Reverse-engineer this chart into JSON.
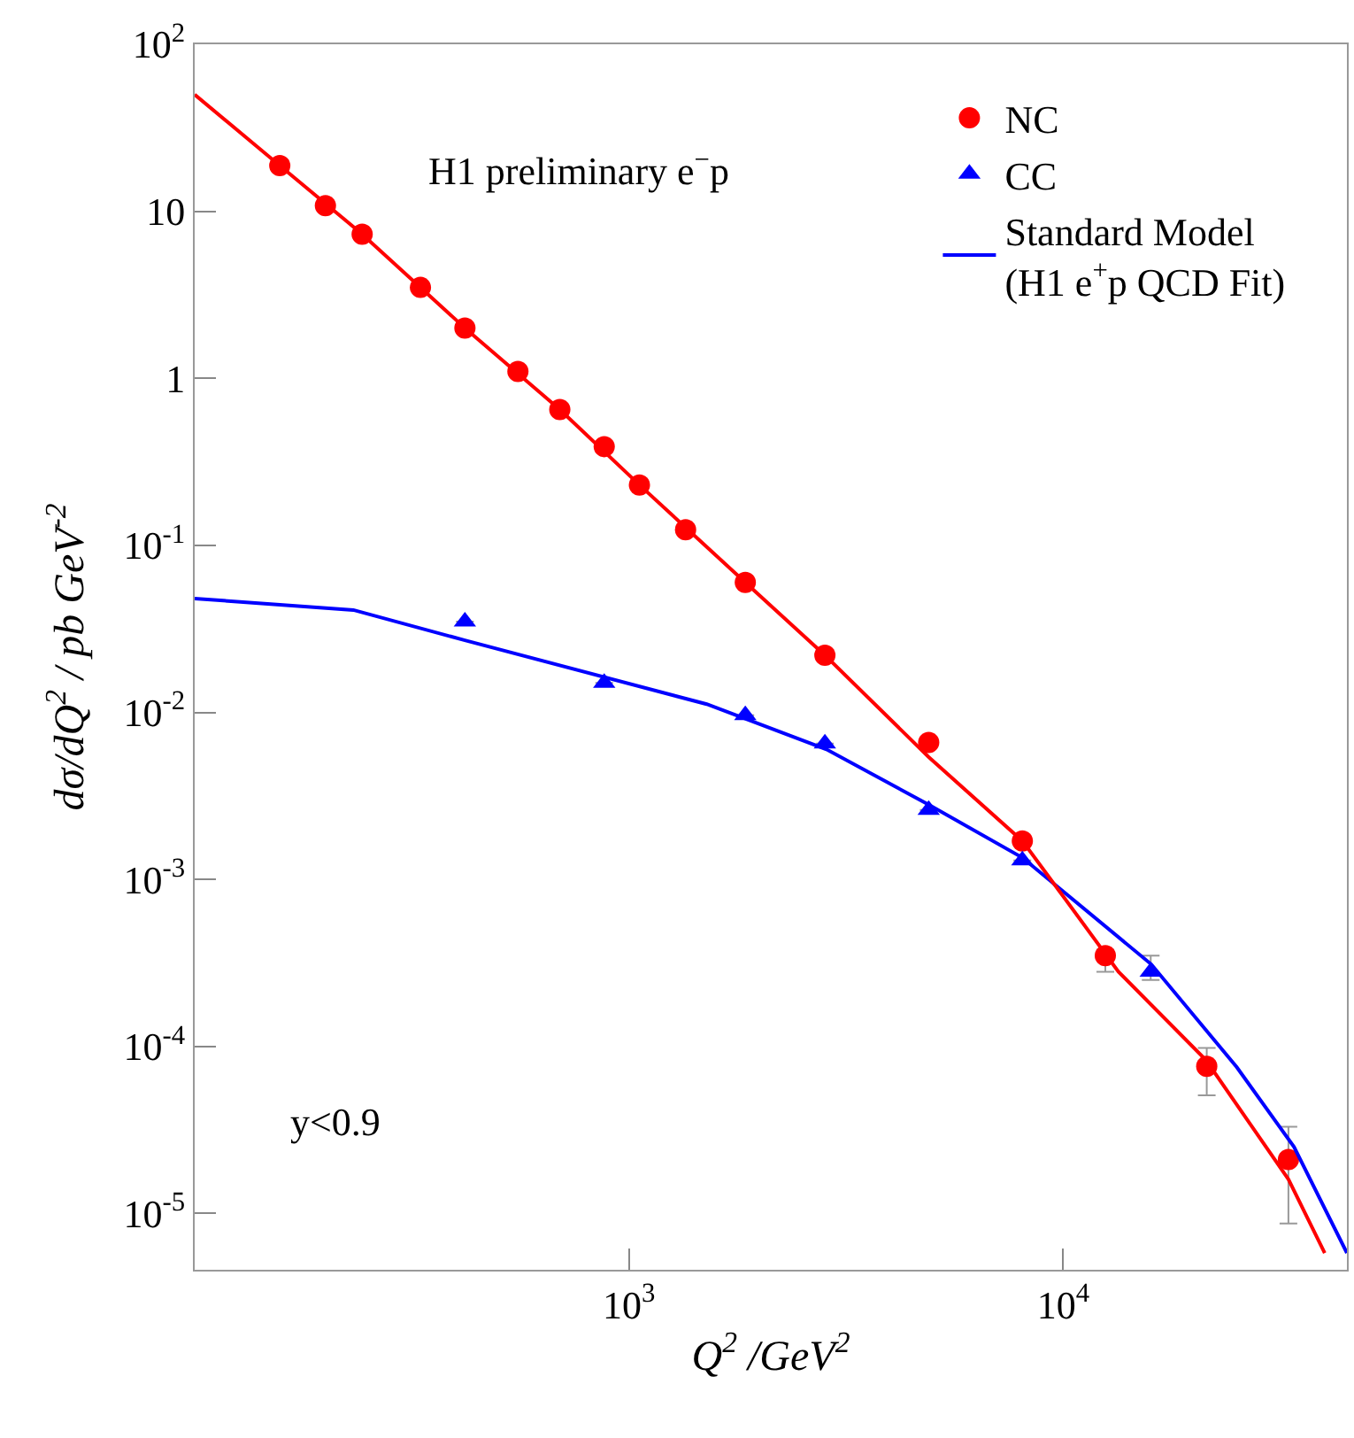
{
  "chart_data": {
    "type": "scatter",
    "xlabel": "Q$^{2}$ /GeV$^{2}$",
    "ylabel": "dσ/dQ$^{2}$ / pb GeV$^{-2}$",
    "annotations": [
      "H1 preliminary e$^{−}$p",
      "y<0.9"
    ],
    "log": "xy",
    "legend": "top right",
    "xlim": [
      100,
      45000
    ],
    "ylim": [
      4.6e-06,
      100
    ],
    "xticks": [
      {
        "value": 1000,
        "label": "10$^{3}$"
      },
      {
        "value": 10000,
        "label": "10$^{4}$"
      }
    ],
    "yticks": [
      {
        "value": 1e-05,
        "label": "10$^{-5}$"
      },
      {
        "value": 0.0001,
        "label": "10$^{-4}$"
      },
      {
        "value": 0.001,
        "label": "10$^{-3}$"
      },
      {
        "value": 0.01,
        "label": "10$^{-2}$"
      },
      {
        "value": 0.1,
        "label": "10$^{-1}$"
      },
      1,
      10,
      {
        "value": 100,
        "label": "10$^{2}$"
      }
    ],
    "series": [
      {
        "name": "NC",
        "marker": "circle",
        "color": "#ff0000",
        "x": [
          157,
          200,
          243,
          331,
          419,
          555,
          693,
          877,
          1057,
          1350,
          1853,
          2826,
          4900,
          8050,
          12500,
          21400,
          33000
        ],
        "values": [
          18.8,
          10.8,
          7.3,
          3.5,
          2.0,
          1.1,
          0.65,
          0.39,
          0.23,
          0.124,
          0.06,
          0.022,
          0.0066,
          0.0017,
          0.00035,
          7.6e-05,
          2.1e-05
        ],
        "errors": [
          null,
          null,
          null,
          null,
          null,
          null,
          null,
          null,
          null,
          null,
          null,
          null,
          null,
          null,
          [
            0.00028,
            0.00038
          ],
          [
            5.1e-05,
            9.8e-05
          ],
          [
            8.7e-06,
            3.3e-05
          ]
        ]
      },
      {
        "name": "CC",
        "marker": "triangle",
        "color": "#0000ff",
        "x": [
          419,
          877,
          1853,
          2826,
          4900,
          8050,
          15900
        ],
        "values": [
          0.035,
          0.015,
          0.0096,
          0.0065,
          0.0026,
          0.0013,
          0.00028
        ],
        "errors": [
          null,
          null,
          null,
          null,
          null,
          null,
          [
            0.00025,
            0.00035
          ]
        ]
      },
      {
        "name": "Standard Model\n(H1 e$^{+}$p QCD Fit)",
        "type": "line",
        "marker": "none",
        "color": "#0000ff",
        "x": [
          100,
          232,
          419,
          1510,
          2850,
          4900,
          8050,
          15950,
          25100,
          34000,
          45000
        ],
        "values": [
          0.048,
          0.041,
          0.027,
          0.0112,
          0.006,
          0.0028,
          0.00135,
          0.00031,
          7.5e-05,
          2.5e-05,
          5.8e-06
        ]
      },
      {
        "type": "line",
        "marker": "none",
        "color": "#ff0000",
        "x": [
          100,
          157,
          243,
          419,
          693,
          1057,
          1853,
          2826,
          4900,
          8050,
          9800,
          13400,
          21300,
          33000,
          40000
        ],
        "values": [
          50,
          18.8,
          7.3,
          2.0,
          0.65,
          0.23,
          0.06,
          0.022,
          0.0054,
          0.0017,
          0.00085,
          0.00028,
          8.3e-05,
          1.6e-05,
          5.8e-06
        ]
      }
    ]
  }
}
